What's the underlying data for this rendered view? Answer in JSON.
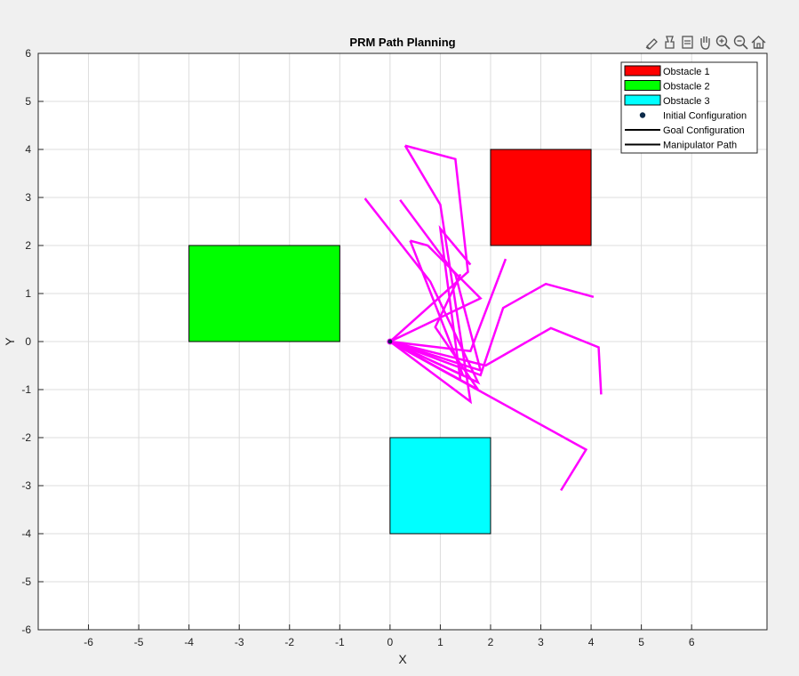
{
  "toolbar": {
    "buttons": [
      {
        "name": "brush-icon",
        "label": "Brush"
      },
      {
        "name": "data-tips-icon",
        "label": "Data Tips"
      },
      {
        "name": "restore-view-icon",
        "label": "Restore View"
      },
      {
        "name": "pan-icon",
        "label": "Pan"
      },
      {
        "name": "zoom-in-icon",
        "label": "Zoom In"
      },
      {
        "name": "zoom-out-icon",
        "label": "Zoom Out"
      },
      {
        "name": "home-icon",
        "label": "Home"
      }
    ]
  },
  "chart_data": {
    "type": "line",
    "title": "PRM Path Planning",
    "xlabel": "X",
    "ylabel": "Y",
    "xlim": [
      -7,
      7.5
    ],
    "ylim": [
      -6,
      6
    ],
    "xticks": [
      -6,
      -5,
      -4,
      -3,
      -2,
      -1,
      0,
      1,
      2,
      3,
      4,
      5,
      6
    ],
    "yticks": [
      -6,
      -5,
      -4,
      -3,
      -2,
      -1,
      0,
      1,
      2,
      3,
      4,
      5,
      6
    ],
    "grid": true,
    "legend_position": "top-right",
    "obstacles": [
      {
        "name": "Obstacle 1",
        "x": 2,
        "y": 2,
        "width": 2,
        "height": 2,
        "color": "#ff0000"
      },
      {
        "name": "Obstacle 2",
        "x": -4,
        "y": 0,
        "width": 3,
        "height": 2,
        "color": "#00ff00"
      },
      {
        "name": "Obstacle 3",
        "x": 0,
        "y": -4,
        "width": 2,
        "height": 2,
        "color": "#00ffff"
      }
    ],
    "initial_configuration": {
      "name": "Initial Configuration",
      "x": 0,
      "y": 0
    },
    "legend_lines": [
      {
        "name": "Goal Configuration",
        "color": "#000000"
      },
      {
        "name": "Manipulator Path",
        "color": "#000000"
      }
    ],
    "path_color": "#ff00ff",
    "manipulator_paths": [
      [
        [
          0,
          0
        ],
        [
          1.45,
          -0.7
        ],
        [
          0.4,
          2.1
        ]
      ],
      [
        [
          0,
          0
        ],
        [
          1.75,
          -0.85
        ],
        [
          0.8,
          1.25
        ],
        [
          -0.5,
          2.98
        ]
      ],
      [
        [
          0,
          0
        ],
        [
          1.8,
          -0.7
        ],
        [
          2.25,
          0.7
        ],
        [
          3.1,
          1.2
        ],
        [
          4.05,
          0.93
        ]
      ],
      [
        [
          0,
          0
        ],
        [
          1.9,
          -0.5
        ],
        [
          3.2,
          0.28
        ],
        [
          4.15,
          -0.12
        ],
        [
          4.2,
          -1.1
        ]
      ],
      [
        [
          0,
          0
        ],
        [
          3.9,
          -2.25
        ],
        [
          3.4,
          -3.1
        ]
      ],
      [
        [
          0,
          0
        ],
        [
          1.6,
          -1.25
        ],
        [
          1.0,
          2.85
        ],
        [
          0.3,
          4.08
        ]
      ],
      [
        [
          0,
          0
        ],
        [
          1.55,
          1.45
        ],
        [
          1.3,
          3.8
        ],
        [
          0.3,
          4.08
        ]
      ],
      [
        [
          0,
          0
        ],
        [
          1.8,
          -0.6
        ],
        [
          1.3,
          1.4
        ],
        [
          0.2,
          2.95
        ]
      ],
      [
        [
          0,
          0
        ],
        [
          1.4,
          -0.8
        ],
        [
          1.0,
          2.35
        ],
        [
          1.6,
          1.6
        ]
      ],
      [
        [
          0,
          0
        ],
        [
          1.8,
          0.9
        ],
        [
          0.75,
          2.0
        ],
        [
          0.4,
          2.1
        ]
      ],
      [
        [
          0,
          0
        ],
        [
          1.6,
          -0.2
        ],
        [
          2.3,
          1.72
        ]
      ],
      [
        [
          0,
          0
        ],
        [
          1.75,
          -1.0
        ],
        [
          0.9,
          0.3
        ],
        [
          1.4,
          1.4
        ]
      ]
    ]
  }
}
